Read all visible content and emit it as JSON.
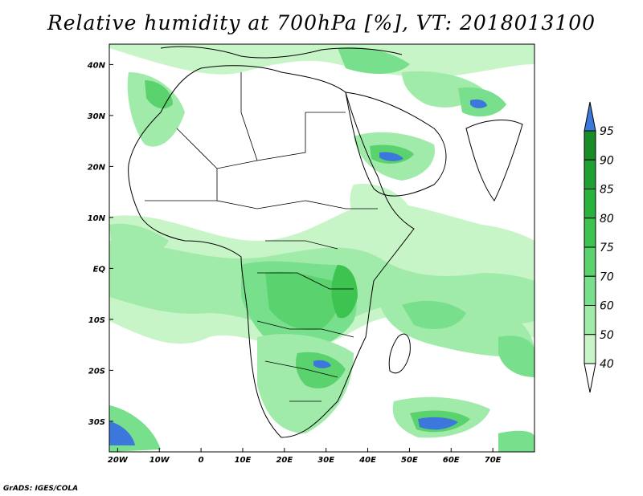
{
  "title": "Relative humidity at 700hPa [%], VT: 2018013100",
  "credit": "GrADS: IGES/COLA",
  "map": {
    "lon_range": [
      -22,
      80
    ],
    "lat_range": [
      -36,
      44
    ],
    "x_ticks": [
      {
        "value": -20,
        "label": "20W"
      },
      {
        "value": -10,
        "label": "10W"
      },
      {
        "value": 0,
        "label": "0"
      },
      {
        "value": 10,
        "label": "10E"
      },
      {
        "value": 20,
        "label": "20E"
      },
      {
        "value": 30,
        "label": "30E"
      },
      {
        "value": 40,
        "label": "40E"
      },
      {
        "value": 50,
        "label": "50E"
      },
      {
        "value": 60,
        "label": "60E"
      },
      {
        "value": 70,
        "label": "70E"
      }
    ],
    "y_ticks": [
      {
        "value": 40,
        "label": "40N"
      },
      {
        "value": 30,
        "label": "30N"
      },
      {
        "value": 20,
        "label": "20N"
      },
      {
        "value": 10,
        "label": "10N"
      },
      {
        "value": 0,
        "label": "EQ"
      },
      {
        "value": -10,
        "label": "10S"
      },
      {
        "value": -20,
        "label": "20S"
      },
      {
        "value": -30,
        "label": "30S"
      }
    ]
  },
  "colorbar": {
    "levels": [
      {
        "label": "40",
        "color": "#f0fff0"
      },
      {
        "label": "50",
        "color": "#c8f5c8"
      },
      {
        "label": "60",
        "color": "#a0ebaa"
      },
      {
        "label": "70",
        "color": "#78e08c"
      },
      {
        "label": "75",
        "color": "#5ad26e"
      },
      {
        "label": "80",
        "color": "#3cc350"
      },
      {
        "label": "85",
        "color": "#28b43c"
      },
      {
        "label": "90",
        "color": "#1ea032"
      },
      {
        "label": "95",
        "color": "#198c28"
      }
    ],
    "over_color": "#3c78dc",
    "under_color": "#ffffff"
  }
}
